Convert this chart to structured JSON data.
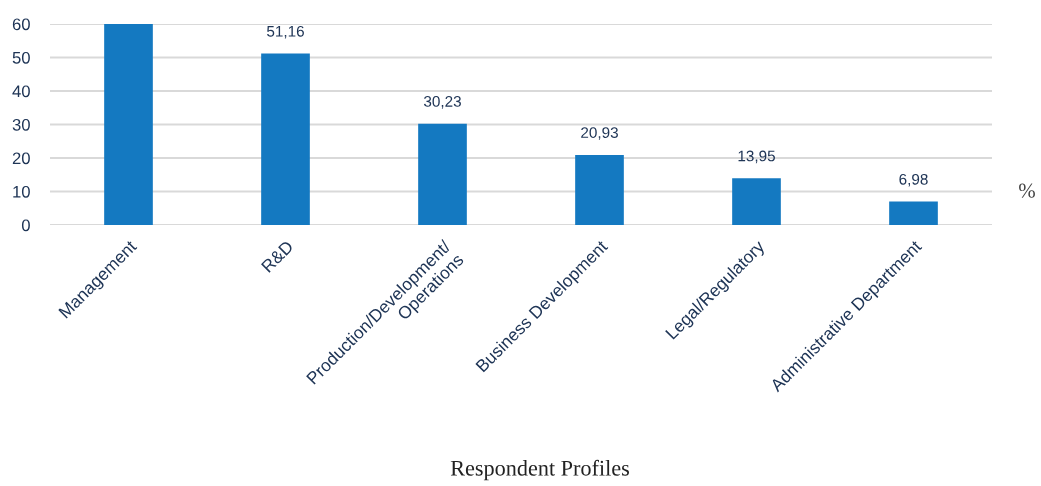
{
  "chart_data": {
    "type": "bar",
    "xlabel": "Respondent Profiles",
    "ylabel": "%",
    "categories": [
      "Management",
      "R&D",
      "Production/Development/\nOperations",
      "Business Development",
      "Legal/Regulatory",
      "Administrative Department"
    ],
    "values": [
      60,
      51.16,
      30.23,
      20.93,
      13.95,
      6.98
    ],
    "value_labels": [
      null,
      "51,16",
      "30,23",
      "20,93",
      "13,95",
      "6,98"
    ],
    "color": "#1479c1",
    "ylim": [
      0,
      60
    ],
    "yticks": [
      0,
      10,
      20,
      30,
      40,
      50,
      60
    ],
    "grid": "y",
    "legend": false
  }
}
